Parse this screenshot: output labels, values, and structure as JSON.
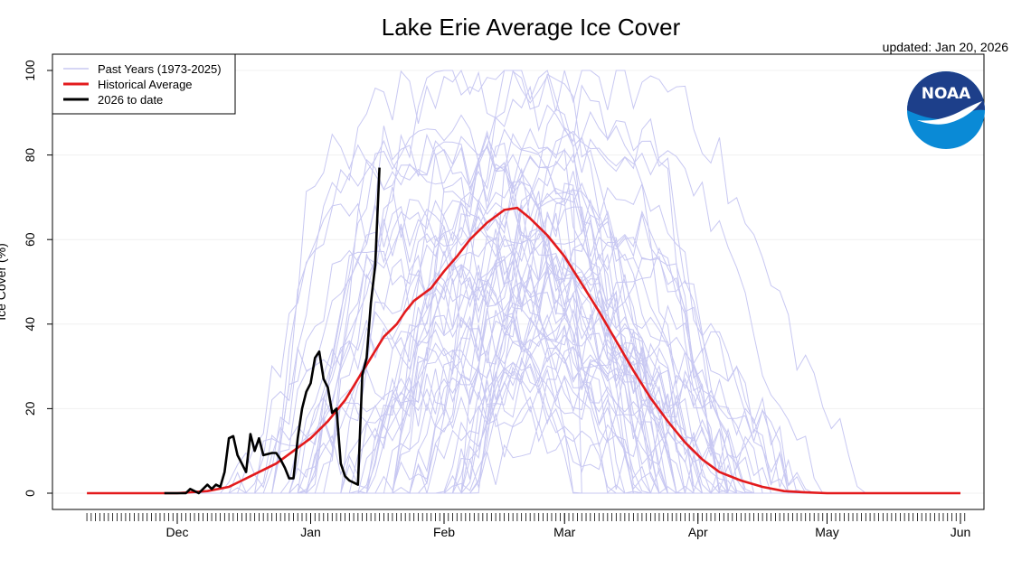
{
  "chart_data": {
    "type": "line",
    "title": "Lake Erie Average Ice Cover",
    "updated": "updated: Jan 20, 2026",
    "xlabel": "",
    "ylabel": "Ice Cover (%)",
    "ylim": [
      0,
      100
    ],
    "y_ticks": [
      0,
      20,
      40,
      60,
      80,
      100
    ],
    "x_ticks": [
      {
        "label": "Dec",
        "date": "Dec 1"
      },
      {
        "label": "Jan",
        "date": "Jan 1"
      },
      {
        "label": "Feb",
        "date": "Feb 1"
      },
      {
        "label": "Mar",
        "date": "Mar 1"
      },
      {
        "label": "Apr",
        "date": "Apr 1"
      },
      {
        "label": "May",
        "date": "May 1"
      },
      {
        "label": "Jun",
        "date": "Jun 1"
      }
    ],
    "xlim": [
      "Nov 10",
      "Jun 5"
    ],
    "grid": true,
    "legend_position": "top-left",
    "legend": [
      {
        "label": "Past Years (1973-2025)",
        "color": "#c8c8f2"
      },
      {
        "label": "Historical Average",
        "color": "#e31a1c"
      },
      {
        "label": "2026 to date",
        "color": "#000000"
      }
    ],
    "logo_text": "NOAA",
    "series": [
      {
        "name": "Historical Average",
        "color": "#e31a1c",
        "points": [
          [
            "Nov 10",
            0
          ],
          [
            "Dec 1",
            0
          ],
          [
            "Dec 8",
            0.5
          ],
          [
            "Dec 13",
            1.5
          ],
          [
            "Dec 16",
            3
          ],
          [
            "Dec 19",
            4.5
          ],
          [
            "Dec 24",
            7
          ],
          [
            "Dec 28",
            10
          ],
          [
            "Jan 1",
            13
          ],
          [
            "Jan 5",
            17
          ],
          [
            "Jan 9",
            22
          ],
          [
            "Jan 12",
            27
          ],
          [
            "Jan 15",
            32
          ],
          [
            "Jan 18",
            37
          ],
          [
            "Jan 21",
            40
          ],
          [
            "Jan 23",
            43
          ],
          [
            "Jan 25",
            45.5
          ],
          [
            "Jan 29",
            48.5
          ],
          [
            "Feb 1",
            52.5
          ],
          [
            "Feb 4",
            56
          ],
          [
            "Feb 7",
            60
          ],
          [
            "Feb 11",
            64
          ],
          [
            "Feb 15",
            67
          ],
          [
            "Feb 18",
            67.5
          ],
          [
            "Feb 21",
            65
          ],
          [
            "Feb 25",
            61
          ],
          [
            "Mar 1",
            56
          ],
          [
            "Mar 5",
            49.5
          ],
          [
            "Mar 9",
            43
          ],
          [
            "Mar 13",
            36
          ],
          [
            "Mar 17",
            29
          ],
          [
            "Mar 21",
            22.5
          ],
          [
            "Mar 25",
            17
          ],
          [
            "Mar 29",
            12
          ],
          [
            "Apr 2",
            8
          ],
          [
            "Apr 6",
            5
          ],
          [
            "Apr 11",
            3
          ],
          [
            "Apr 16",
            1.5
          ],
          [
            "Apr 21",
            0.5
          ],
          [
            "Apr 26",
            0.2
          ],
          [
            "May 1",
            0
          ],
          [
            "Jun 1",
            0
          ]
        ]
      },
      {
        "name": "2026 to date",
        "color": "#000000",
        "points": [
          [
            "Nov 28",
            0
          ],
          [
            "Dec 1",
            0
          ],
          [
            "Dec 3",
            0
          ],
          [
            "Dec 4",
            1
          ],
          [
            "Dec 6",
            0
          ],
          [
            "Dec 8",
            2
          ],
          [
            "Dec 9",
            1
          ],
          [
            "Dec 10",
            2
          ],
          [
            "Dec 11",
            1.5
          ],
          [
            "Dec 12",
            5
          ],
          [
            "Dec 13",
            13
          ],
          [
            "Dec 14",
            13.5
          ],
          [
            "Dec 15",
            9
          ],
          [
            "Dec 16",
            7
          ],
          [
            "Dec 17",
            5
          ],
          [
            "Dec 18",
            14
          ],
          [
            "Dec 19",
            10
          ],
          [
            "Dec 20",
            13
          ],
          [
            "Dec 21",
            9
          ],
          [
            "Dec 23",
            9.5
          ],
          [
            "Dec 24",
            9.5
          ],
          [
            "Dec 25",
            8
          ],
          [
            "Dec 26",
            6
          ],
          [
            "Dec 27",
            3.5
          ],
          [
            "Dec 28",
            3.5
          ],
          [
            "Dec 29",
            13
          ],
          [
            "Dec 30",
            20
          ],
          [
            "Dec 31",
            24
          ],
          [
            "Jan 1",
            26
          ],
          [
            "Jan 2",
            32
          ],
          [
            "Jan 3",
            33.5
          ],
          [
            "Jan 4",
            27
          ],
          [
            "Jan 5",
            25
          ],
          [
            "Jan 6",
            19
          ],
          [
            "Jan 7",
            20
          ],
          [
            "Jan 8",
            7
          ],
          [
            "Jan 9",
            4
          ],
          [
            "Jan 10",
            3
          ],
          [
            "Jan 11",
            2.5
          ],
          [
            "Jan 12",
            2
          ],
          [
            "Jan 13",
            28
          ],
          [
            "Jan 14",
            32
          ],
          [
            "Jan 15",
            45
          ],
          [
            "Jan 16",
            54
          ],
          [
            "Jan 17",
            77
          ]
        ]
      }
    ],
    "past_years_count": 53
  }
}
